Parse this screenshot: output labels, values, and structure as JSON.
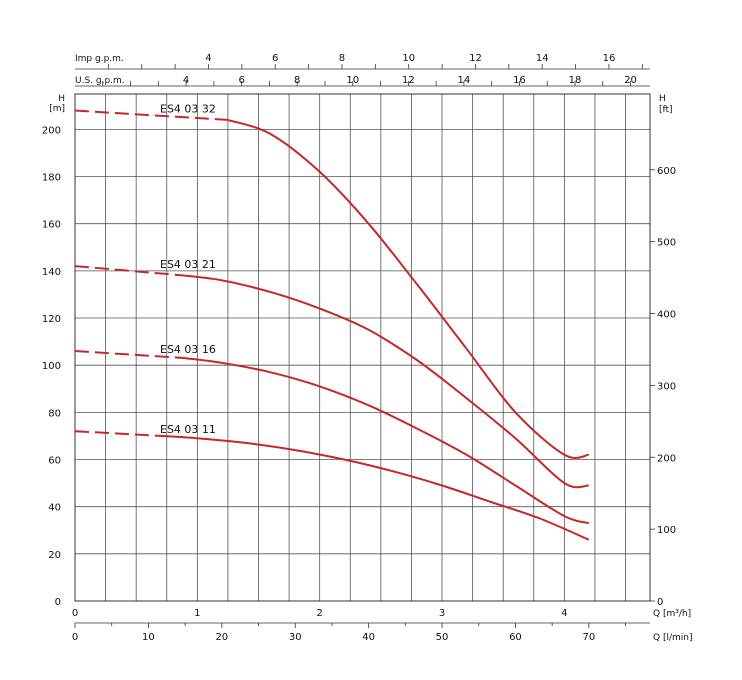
{
  "chart_data": {
    "type": "line",
    "axes": {
      "x_m3h": {
        "label": "Q [m³/h]",
        "ticks": [
          "0",
          "1",
          "2",
          "3",
          "4"
        ],
        "range": [
          0,
          4.7
        ]
      },
      "x_lmin": {
        "label": "Q [l/min]",
        "ticks": [
          "0",
          "10",
          "20",
          "30",
          "40",
          "50",
          "60",
          "70"
        ],
        "range": [
          0,
          78.33
        ]
      },
      "top_imp": {
        "label": "Imp g.p.m.",
        "ticks": [
          "4",
          "6",
          "8",
          "10",
          "12",
          "14",
          "16"
        ],
        "range": [
          0,
          17.23
        ]
      },
      "top_us": {
        "label": "U.S. g.p.m.",
        "ticks": [
          "4",
          "6",
          "8",
          "10",
          "12",
          "14",
          "16",
          "18",
          "20"
        ],
        "range": [
          0,
          20.7
        ]
      },
      "y_m": {
        "label": "H\n[m]",
        "ticks": [
          "0",
          "20",
          "40",
          "60",
          "80",
          "100",
          "120",
          "140",
          "160",
          "180",
          "200"
        ],
        "range": [
          0,
          215
        ]
      },
      "y_ft": {
        "label": "H\n[ft]",
        "ticks": [
          "0",
          "100",
          "200",
          "300",
          "400",
          "500",
          "600"
        ],
        "range": [
          0,
          705.4
        ]
      }
    },
    "grid": true,
    "series": [
      {
        "name": "ES4 03 32",
        "x": [
          0,
          1.25,
          1.6,
          2.0,
          2.4,
          2.8,
          3.2,
          3.6,
          4.0,
          4.2
        ],
        "y": [
          208,
          204,
          198,
          182,
          160,
          134,
          107,
          80,
          62,
          62
        ],
        "dashed_until_x": 1.25,
        "color": "#c62828"
      },
      {
        "name": "ES4 03 21",
        "x": [
          0,
          0.9,
          1.2,
          1.6,
          2.0,
          2.4,
          2.8,
          3.2,
          3.6,
          4.0,
          4.2
        ],
        "y": [
          142,
          138,
          136,
          131,
          124,
          115,
          102,
          86,
          69,
          50,
          49
        ],
        "dashed_until_x": 0.9,
        "color": "#c62828"
      },
      {
        "name": "ES4 03 16",
        "x": [
          0,
          0.9,
          1.2,
          1.6,
          2.0,
          2.4,
          2.8,
          3.2,
          3.6,
          4.0,
          4.2
        ],
        "y": [
          106,
          103,
          101,
          97,
          91,
          83,
          73,
          62,
          49,
          36,
          33
        ],
        "dashed_until_x": 0.9,
        "color": "#c62828"
      },
      {
        "name": "ES4 03 11",
        "x": [
          0,
          0.7,
          1.0,
          1.4,
          1.8,
          2.2,
          2.6,
          3.0,
          3.4,
          3.8,
          4.2
        ],
        "y": [
          72,
          70,
          69,
          67,
          64,
          60,
          55,
          49,
          42,
          35,
          26
        ],
        "dashed_until_x": 0.7,
        "color": "#c62828"
      }
    ]
  }
}
